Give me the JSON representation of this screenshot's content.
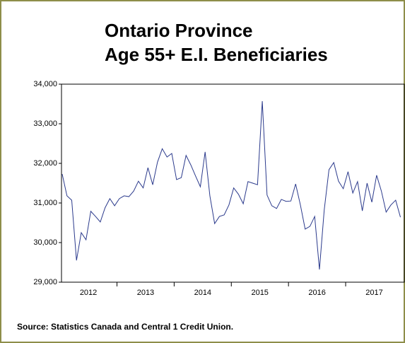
{
  "chart_data": {
    "type": "line",
    "title": [
      "Ontario Province",
      "Age 55+ E.I. Beneficiaries"
    ],
    "source": "Source: Statistics Canada and Central 1 Credit Union.",
    "categories": [
      null,
      null,
      null,
      null,
      null,
      null,
      "2012",
      null,
      null,
      null,
      null,
      null,
      null,
      null,
      null,
      null,
      null,
      null,
      "2013",
      null,
      null,
      null,
      null,
      null,
      null,
      null,
      null,
      null,
      null,
      null,
      "2014",
      null,
      null,
      null,
      null,
      null,
      null,
      null,
      null,
      null,
      null,
      null,
      "2015",
      null,
      null,
      null,
      null,
      null,
      null,
      null,
      null,
      null,
      null,
      null,
      "2016",
      null,
      null,
      null,
      null,
      null,
      null,
      null,
      null,
      null,
      null,
      null,
      "2017",
      null,
      null,
      null,
      null,
      null
    ],
    "values": [
      31730,
      31180,
      31070,
      29550,
      30250,
      30070,
      30790,
      30660,
      30520,
      30880,
      31110,
      30930,
      31110,
      31180,
      31160,
      31300,
      31550,
      31380,
      31890,
      31460,
      32030,
      32370,
      32160,
      32250,
      31590,
      31640,
      32200,
      31960,
      31680,
      31410,
      32290,
      31180,
      30480,
      30660,
      30700,
      30950,
      31380,
      31220,
      30980,
      31540,
      31500,
      31460,
      33570,
      31200,
      30930,
      30860,
      31090,
      31040,
      31050,
      31480,
      30950,
      30340,
      30410,
      30660,
      29320,
      30820,
      31840,
      32020,
      31550,
      31360,
      31790,
      31250,
      31540,
      30800,
      31500,
      31020,
      31700,
      31300,
      30770,
      30950,
      31070,
      30640
    ],
    "color": "#2b3a8c",
    "ylim": [
      29000,
      34000
    ],
    "yticks": [
      {
        "value": 29000,
        "label": "29,000"
      },
      {
        "value": 30000,
        "label": "30,000"
      },
      {
        "value": 31000,
        "label": "31,000"
      },
      {
        "value": 32000,
        "label": "32,000"
      },
      {
        "value": 33000,
        "label": "33,000"
      },
      {
        "value": 34000,
        "label": "34,000"
      }
    ]
  }
}
